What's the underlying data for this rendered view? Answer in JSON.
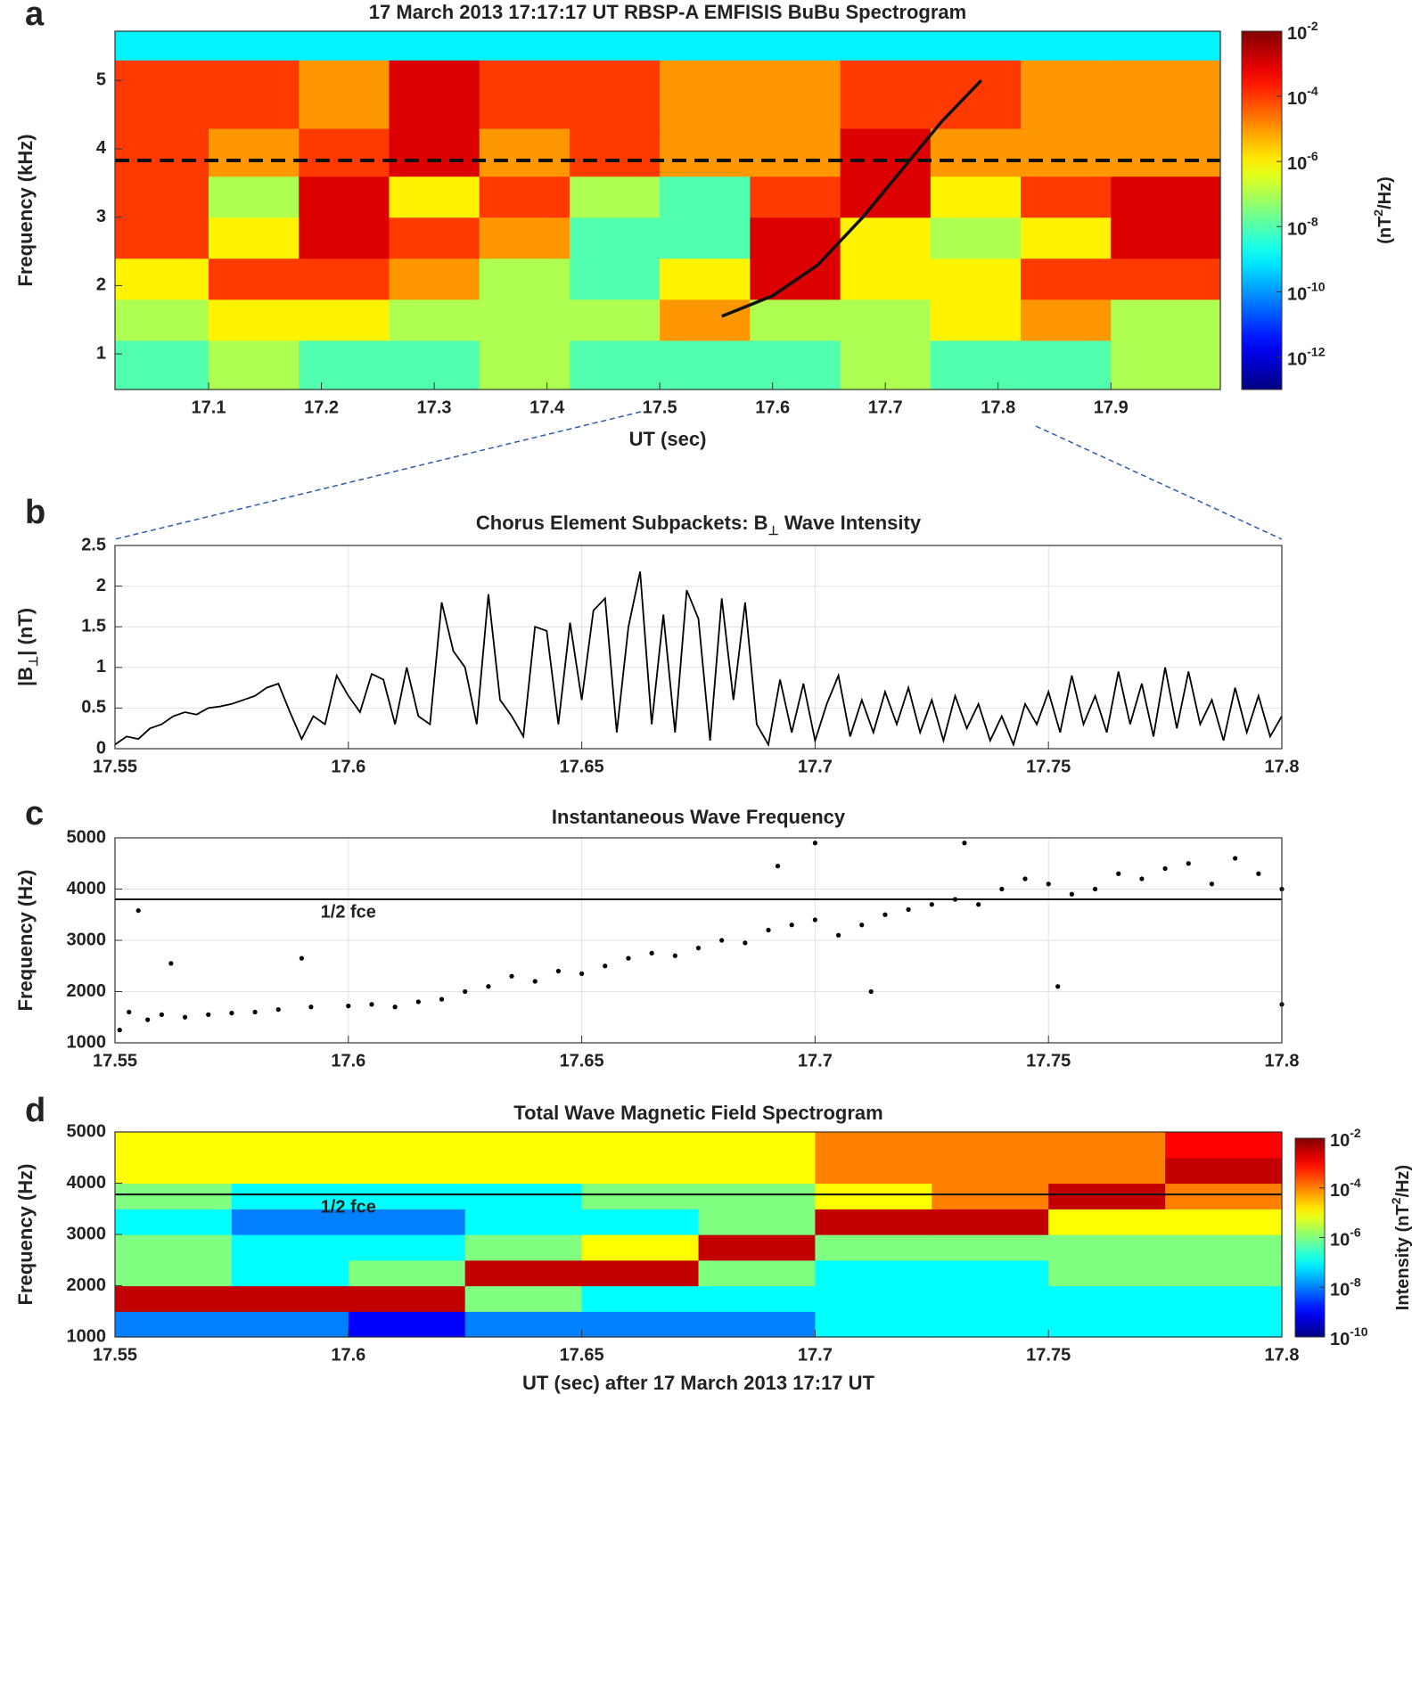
{
  "chart_data": [
    {
      "type": "heatmap",
      "panel_label": "a",
      "title": "17 March 2013 17:17:17 UT  RBSP-A EMFISIS BuBu Spectrogram",
      "xlabel": "UT (sec)",
      "ylabel": "Frequency (kHz)",
      "xlim": [
        17.017,
        17.997
      ],
      "ylim": [
        0.48,
        5.72
      ],
      "xticks": [
        17.1,
        17.2,
        17.3,
        17.4,
        17.5,
        17.6,
        17.7,
        17.8,
        17.9
      ],
      "yticks": [
        1,
        2,
        3,
        4,
        5
      ],
      "grid": false,
      "colormap": "jet",
      "log_color": true,
      "x_edges": [
        17.017,
        17.1,
        17.18,
        17.26,
        17.34,
        17.42,
        17.5,
        17.58,
        17.66,
        17.74,
        17.82,
        17.9,
        17.997
      ],
      "y_edges": [
        0.48,
        1.2,
        1.8,
        2.4,
        3.0,
        3.6,
        4.3,
        5.3,
        5.72
      ],
      "z": [
        [
          1e-08,
          1e-07,
          1e-08,
          1e-08,
          1e-07,
          1e-08,
          1e-08,
          1e-08,
          1e-07,
          1e-08,
          1e-08,
          1e-07
        ],
        [
          1e-07,
          1e-06,
          1e-06,
          1e-07,
          1e-07,
          1e-07,
          1e-05,
          1e-07,
          1e-07,
          1e-06,
          1e-05,
          1e-07
        ],
        [
          1e-06,
          0.0001,
          0.0001,
          1e-05,
          1e-07,
          1e-08,
          1e-06,
          0.001,
          1e-06,
          1e-06,
          0.0001,
          0.0001
        ],
        [
          0.0001,
          1e-06,
          0.001,
          0.0001,
          1e-05,
          1e-08,
          1e-08,
          0.001,
          1e-06,
          1e-07,
          1e-06,
          0.001
        ],
        [
          0.0001,
          1e-07,
          0.001,
          1e-06,
          0.0001,
          1e-07,
          1e-08,
          0.0001,
          0.001,
          1e-06,
          0.0001,
          0.001
        ],
        [
          0.0001,
          1e-05,
          0.0001,
          0.001,
          1e-05,
          0.0001,
          1e-05,
          1e-05,
          0.001,
          1e-05,
          1e-05,
          1e-05
        ],
        [
          0.0001,
          0.0001,
          1e-05,
          0.001,
          0.0001,
          0.0001,
          1e-05,
          1e-05,
          0.0001,
          0.0001,
          1e-05,
          1e-05
        ],
        [
          1e-09,
          1e-09,
          1e-09,
          1e-09,
          1e-09,
          1e-09,
          1e-09,
          1e-09,
          1e-09,
          1e-09,
          1e-09,
          1e-09
        ]
      ],
      "clim": [
        1e-13,
        0.01
      ],
      "cticks": [
        {
          "value": 0.01,
          "label": "10",
          "exponent": "-2"
        },
        {
          "value": 0.0001,
          "label": "10",
          "exponent": "-4"
        },
        {
          "value": 1e-06,
          "label": "10",
          "exponent": "-6"
        },
        {
          "value": 1e-08,
          "label": "10",
          "exponent": "-8"
        },
        {
          "value": 1e-10,
          "label": "10",
          "exponent": "-10"
        },
        {
          "value": 1e-12,
          "label": "10",
          "exponent": "-12"
        }
      ],
      "colorbar_label": {
        "text": "(nT",
        "sup": "2",
        "tail": "/Hz)"
      },
      "hlines": [
        {
          "value": 3.83,
          "style": "dashed",
          "color": "#111"
        }
      ],
      "lines": [
        {
          "x": [
            17.555,
            17.6,
            17.64,
            17.68,
            17.72,
            17.75,
            17.785
          ],
          "y": [
            1.55,
            1.85,
            2.3,
            3.0,
            3.8,
            4.4,
            5.0
          ],
          "color": "#111"
        }
      ]
    },
    {
      "type": "line",
      "panel_label": "b",
      "title": {
        "text": "Chorus Element Subpackets:  B",
        "sub": "⊥",
        "tail": " Wave Intensity"
      },
      "ylabel": {
        "text": "|B",
        "sub": "⊥",
        "tail": "| (nT)"
      },
      "xlim": [
        17.55,
        17.8
      ],
      "ylim": [
        0,
        2.5
      ],
      "xticks": [
        17.55,
        17.6,
        17.65,
        17.7,
        17.75,
        17.8
      ],
      "yticks": [
        0,
        0.5,
        1,
        1.5,
        2,
        2.5
      ],
      "grid": true,
      "x": [
        17.55,
        17.5525,
        17.555,
        17.5575,
        17.56,
        17.5625,
        17.565,
        17.5675,
        17.57,
        17.5725,
        17.575,
        17.5775,
        17.58,
        17.5825,
        17.585,
        17.5875,
        17.59,
        17.5925,
        17.595,
        17.5975,
        17.6,
        17.6025,
        17.605,
        17.6075,
        17.61,
        17.6125,
        17.615,
        17.6175,
        17.62,
        17.6225,
        17.625,
        17.6275,
        17.63,
        17.6325,
        17.635,
        17.6375,
        17.64,
        17.6425,
        17.645,
        17.6475,
        17.65,
        17.6525,
        17.655,
        17.6575,
        17.66,
        17.6625,
        17.665,
        17.6675,
        17.67,
        17.6725,
        17.675,
        17.6775,
        17.68,
        17.6825,
        17.685,
        17.6875,
        17.69,
        17.6925,
        17.695,
        17.6975,
        17.7,
        17.7025,
        17.705,
        17.7075,
        17.71,
        17.7125,
        17.715,
        17.7175,
        17.72,
        17.7225,
        17.725,
        17.7275,
        17.73,
        17.7325,
        17.735,
        17.7375,
        17.74,
        17.7425,
        17.745,
        17.7475,
        17.75,
        17.7525,
        17.755,
        17.7575,
        17.76,
        17.7625,
        17.765,
        17.7675,
        17.77,
        17.7725,
        17.775,
        17.7775,
        17.78,
        17.7825,
        17.785,
        17.7875,
        17.79,
        17.7925,
        17.795,
        17.7975,
        17.8
      ],
      "series": [
        {
          "color": "#000",
          "values": [
            0.05,
            0.15,
            0.12,
            0.25,
            0.3,
            0.4,
            0.45,
            0.42,
            0.5,
            0.52,
            0.55,
            0.6,
            0.65,
            0.75,
            0.8,
            0.45,
            0.12,
            0.4,
            0.3,
            0.9,
            0.65,
            0.45,
            0.92,
            0.85,
            0.3,
            1.0,
            0.4,
            0.3,
            1.8,
            1.2,
            1.0,
            0.3,
            1.9,
            0.6,
            0.4,
            0.15,
            1.5,
            1.45,
            0.3,
            1.55,
            0.6,
            1.7,
            1.85,
            0.2,
            1.5,
            2.18,
            0.3,
            1.65,
            0.2,
            1.95,
            1.6,
            0.1,
            1.85,
            0.6,
            1.8,
            0.3,
            0.05,
            0.85,
            0.2,
            0.8,
            0.1,
            0.55,
            0.9,
            0.15,
            0.6,
            0.2,
            0.7,
            0.3,
            0.75,
            0.2,
            0.6,
            0.1,
            0.65,
            0.25,
            0.55,
            0.1,
            0.4,
            0.05,
            0.55,
            0.3,
            0.7,
            0.2,
            0.9,
            0.3,
            0.65,
            0.2,
            0.95,
            0.3,
            0.8,
            0.15,
            1.0,
            0.25,
            0.95,
            0.3,
            0.6,
            0.1,
            0.75,
            0.2,
            0.65,
            0.15,
            0.4
          ]
        }
      ]
    },
    {
      "type": "scatter",
      "panel_label": "c",
      "title": "Instantaneous Wave Frequency",
      "ylabel": "Frequency (Hz)",
      "xlim": [
        17.55,
        17.8
      ],
      "ylim": [
        1000,
        5000
      ],
      "xticks": [
        17.55,
        17.6,
        17.65,
        17.7,
        17.75,
        17.8
      ],
      "yticks": [
        1000,
        2000,
        3000,
        4000,
        5000
      ],
      "grid": true,
      "color": "#000",
      "x": [
        17.551,
        17.553,
        17.555,
        17.557,
        17.56,
        17.562,
        17.565,
        17.57,
        17.575,
        17.58,
        17.585,
        17.59,
        17.592,
        17.6,
        17.605,
        17.61,
        17.615,
        17.62,
        17.625,
        17.63,
        17.635,
        17.64,
        17.645,
        17.65,
        17.655,
        17.66,
        17.665,
        17.67,
        17.675,
        17.68,
        17.685,
        17.69,
        17.692,
        17.695,
        17.7,
        17.7,
        17.705,
        17.71,
        17.712,
        17.715,
        17.72,
        17.725,
        17.73,
        17.732,
        17.735,
        17.74,
        17.745,
        17.75,
        17.752,
        17.755,
        17.76,
        17.765,
        17.77,
        17.775,
        17.78,
        17.785,
        17.79,
        17.795,
        17.8,
        17.8
      ],
      "values": [
        1250,
        1600,
        3580,
        1450,
        1550,
        2550,
        1500,
        1550,
        1580,
        1600,
        1650,
        2650,
        1700,
        1720,
        1750,
        1700,
        1800,
        1850,
        2000,
        2100,
        2300,
        2200,
        2400,
        2350,
        2500,
        2650,
        2750,
        2700,
        2850,
        3000,
        2950,
        3200,
        4450,
        3300,
        3400,
        4900,
        3100,
        3300,
        2000,
        3500,
        3600,
        3700,
        3800,
        4900,
        3700,
        4000,
        4200,
        4100,
        2100,
        3900,
        4000,
        4300,
        4200,
        4400,
        4500,
        4100,
        4600,
        4300,
        4000,
        1750
      ],
      "hlines": [
        {
          "value": 3800,
          "label": "1/2 fce",
          "style": "solid",
          "color": "#111"
        }
      ]
    },
    {
      "type": "heatmap",
      "panel_label": "d",
      "title": "Total Wave Magnetic Field Spectrogram",
      "xlabel": "UT (sec) after 17 March 2013 17:17 UT",
      "ylabel": "Frequency (Hz)",
      "xlim": [
        17.55,
        17.8
      ],
      "ylim": [
        1000,
        5000
      ],
      "xticks": [
        17.55,
        17.6,
        17.65,
        17.7,
        17.75,
        17.8
      ],
      "yticks": [
        1000,
        2000,
        3000,
        4000,
        5000
      ],
      "grid": false,
      "colormap": "jet",
      "log_color": true,
      "x_edges": [
        17.55,
        17.575,
        17.6,
        17.625,
        17.65,
        17.675,
        17.7,
        17.725,
        17.75,
        17.775,
        17.8
      ],
      "y_edges": [
        1000,
        1500,
        2000,
        2500,
        3000,
        3500,
        4000,
        4500,
        5000
      ],
      "z": [
        [
          1e-08,
          1e-08,
          1e-09,
          1e-08,
          1e-08,
          1e-08,
          1e-07,
          1e-07,
          1e-07,
          1e-07
        ],
        [
          0.003,
          0.003,
          0.003,
          1e-06,
          1e-07,
          1e-07,
          1e-07,
          1e-07,
          1e-07,
          1e-07
        ],
        [
          1e-06,
          1e-07,
          1e-06,
          0.003,
          0.003,
          1e-06,
          1e-07,
          1e-07,
          1e-06,
          1e-06
        ],
        [
          1e-06,
          1e-07,
          1e-07,
          1e-06,
          1e-05,
          0.003,
          1e-06,
          1e-06,
          1e-06,
          1e-06
        ],
        [
          1e-07,
          1e-08,
          1e-08,
          1e-07,
          1e-07,
          1e-06,
          0.003,
          0.003,
          1e-05,
          1e-05
        ],
        [
          1e-06,
          1e-07,
          1e-07,
          1e-07,
          1e-06,
          1e-06,
          1e-05,
          0.0001,
          0.003,
          0.0001
        ],
        [
          1e-05,
          1e-05,
          1e-05,
          1e-05,
          1e-05,
          1e-05,
          0.0001,
          0.0001,
          0.0001,
          0.003
        ],
        [
          1e-05,
          1e-05,
          1e-05,
          1e-05,
          1e-05,
          1e-05,
          0.0001,
          0.0001,
          0.0001,
          0.001
        ]
      ],
      "clim": [
        1e-10,
        0.01
      ],
      "cticks": [
        {
          "value": 0.01,
          "label": "10",
          "exponent": "-2"
        },
        {
          "value": 0.0001,
          "label": "10",
          "exponent": "-4"
        },
        {
          "value": 1e-06,
          "label": "10",
          "exponent": "-6"
        },
        {
          "value": 1e-08,
          "label": "10",
          "exponent": "-8"
        },
        {
          "value": 1e-10,
          "label": "10",
          "exponent": "-10"
        }
      ],
      "colorbar_label": {
        "text": "Intensity (nT",
        "sup": "2",
        "tail": "/Hz)"
      },
      "hlines": [
        {
          "value": 3780,
          "label": "1/2 fce",
          "style": "solid",
          "color": "#111"
        }
      ]
    }
  ]
}
